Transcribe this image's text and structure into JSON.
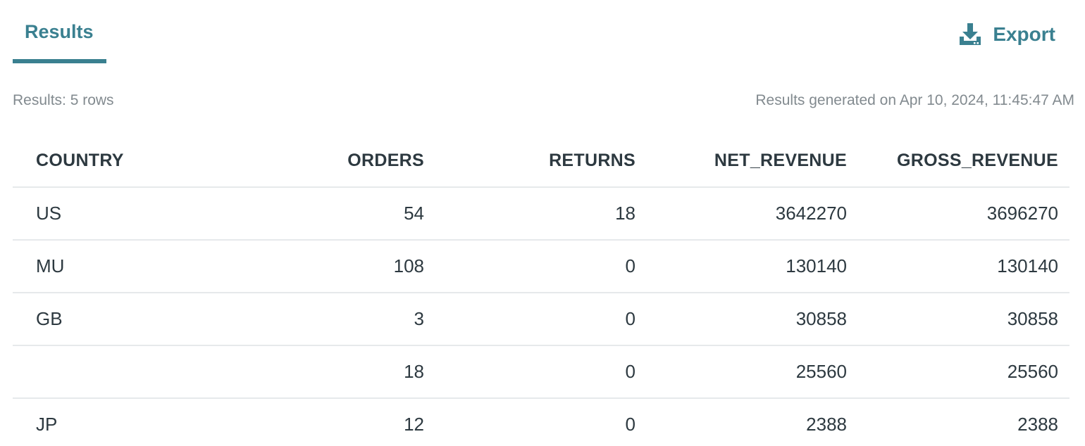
{
  "tabs": [
    {
      "label": "Results",
      "active": true
    }
  ],
  "toolbar": {
    "export_label": "Export",
    "export_icon": "download-icon"
  },
  "meta": {
    "row_count_text": "Results: 5 rows",
    "generated_text": "Results generated on Apr 10, 2024, 11:45:47 AM"
  },
  "colors": {
    "accent": "#3a8090",
    "text": "#2d3940",
    "muted": "#828a8f",
    "divider": "#e6e9eb"
  },
  "table": {
    "columns": [
      "COUNTRY",
      "ORDERS",
      "RETURNS",
      "NET_REVENUE",
      "GROSS_REVENUE"
    ],
    "rows": [
      [
        "US",
        "54",
        "18",
        "3642270",
        "3696270"
      ],
      [
        "MU",
        "108",
        "0",
        "130140",
        "130140"
      ],
      [
        "GB",
        "3",
        "0",
        "30858",
        "30858"
      ],
      [
        "",
        "18",
        "0",
        "25560",
        "25560"
      ],
      [
        "JP",
        "12",
        "0",
        "2388",
        "2388"
      ]
    ]
  }
}
